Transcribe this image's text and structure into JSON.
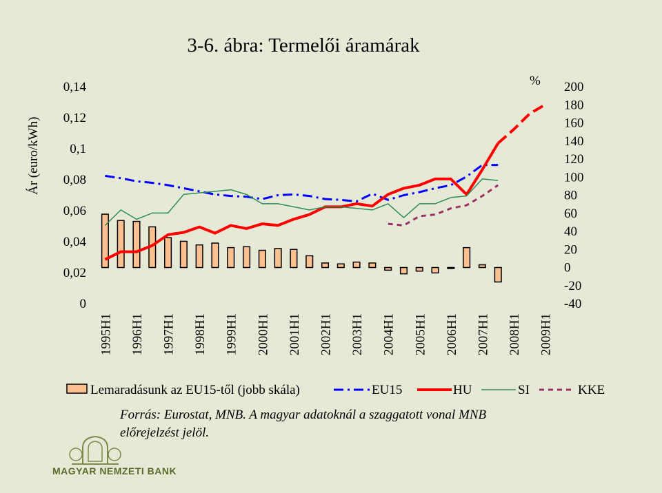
{
  "title": "3-6. ábra: Termelői áramárak",
  "source_line1": "Forrás: Eurostat, MNB. A magyar adatoknál a szaggatott vonal MNB",
  "source_line2": "előrejelzést jelöl.",
  "logo_text": "MAGYAR NEMZETI BANK",
  "colors": {
    "background": "#e6e9d6",
    "bar_fill": "#fac090",
    "eu15": "#0000ff",
    "hu": "#ff0000",
    "si": "#2e8b57",
    "kke": "#993366"
  },
  "chart_data": {
    "type": "bar+line",
    "categories": [
      "1995H1",
      "1995H2",
      "1996H1",
      "1996H2",
      "1997H1",
      "1997H2",
      "1998H1",
      "1998H2",
      "1999H1",
      "1999H2",
      "2000H1",
      "2000H2",
      "2001H1",
      "2001H2",
      "2002H1",
      "2002H2",
      "2003H1",
      "2003H2",
      "2004H1",
      "2004H2",
      "2005H1",
      "2005H2",
      "2006H1",
      "2006H2",
      "2007H1",
      "2007H2",
      "2008H1",
      "2008H2",
      "2009H1"
    ],
    "x_tick_labels": [
      "1995H1",
      "1996H1",
      "1997H1",
      "1998H1",
      "1999H1",
      "2000H1",
      "2001H1",
      "2002H1",
      "2003H1",
      "2004H1",
      "2005H1",
      "2006H1",
      "2007H1",
      "2008H1",
      "2009H1"
    ],
    "ylabel_left": "Ár (euro/kWh)",
    "ylabel_right": "%",
    "ylim_left": [
      0,
      0.14
    ],
    "ylim_right": [
      -40,
      200
    ],
    "left_ticks": [
      "0",
      "0,02",
      "0,04",
      "0,06",
      "0,08",
      "0,1",
      "0,12",
      "0,14"
    ],
    "right_ticks": [
      "-40",
      "-20",
      "0",
      "20",
      "40",
      "60",
      "80",
      "100",
      "120",
      "140",
      "160",
      "180",
      "200"
    ],
    "series": [
      {
        "name": "Lemaradásunk az EU15-től (jobb skála)",
        "axis": "right",
        "type": "bar",
        "values": [
          59,
          52,
          51,
          45,
          33,
          29,
          25,
          27,
          22,
          23,
          19,
          21,
          20,
          13,
          5,
          4,
          6,
          5,
          -3,
          -7,
          -4,
          -6,
          -1,
          22,
          3,
          -16,
          null,
          null,
          null
        ]
      },
      {
        "name": "EU15",
        "axis": "left",
        "type": "line",
        "style": "dashdot",
        "values": [
          0.0825,
          0.081,
          0.079,
          0.078,
          0.0765,
          0.0745,
          0.0725,
          0.0705,
          0.0695,
          0.069,
          0.0675,
          0.07,
          0.0705,
          0.0695,
          0.0675,
          0.067,
          0.066,
          0.071,
          0.067,
          0.07,
          0.072,
          0.0745,
          0.0765,
          0.082,
          0.0895,
          0.0895,
          null,
          null,
          null
        ]
      },
      {
        "name": "HU",
        "axis": "left",
        "type": "line",
        "values": [
          0.0285,
          0.0335,
          0.0335,
          0.0375,
          0.0445,
          0.046,
          0.0495,
          0.0455,
          0.0505,
          0.0485,
          0.0515,
          0.0505,
          0.0545,
          0.0575,
          0.0625,
          0.0625,
          0.0645,
          0.063,
          0.0705,
          0.0745,
          0.0765,
          0.0805,
          0.0805,
          0.0705,
          0.0865,
          0.1035,
          0.1125,
          0.1225,
          0.1285
        ]
      },
      {
        "name": "SI",
        "axis": "left",
        "type": "line",
        "values": [
          0.0505,
          0.0605,
          0.0545,
          0.0585,
          0.0585,
          0.0705,
          0.0715,
          0.0725,
          0.0735,
          0.0705,
          0.0645,
          0.0645,
          0.0625,
          0.0605,
          0.0625,
          0.0625,
          0.0615,
          0.0605,
          0.0645,
          0.0555,
          0.0645,
          0.0645,
          0.0685,
          0.0695,
          0.0805,
          0.0795,
          null,
          null,
          null
        ]
      },
      {
        "name": "KKE",
        "axis": "left",
        "type": "line",
        "style": "dashed",
        "values": [
          null,
          null,
          null,
          null,
          null,
          null,
          null,
          null,
          null,
          null,
          null,
          null,
          null,
          null,
          null,
          null,
          null,
          null,
          0.0515,
          0.0505,
          0.0565,
          0.0575,
          0.0615,
          0.0635,
          0.0695,
          0.0765,
          null,
          null,
          null
        ]
      }
    ]
  }
}
